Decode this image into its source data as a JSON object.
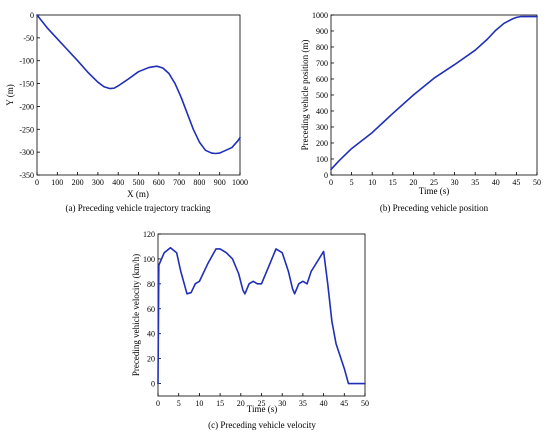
{
  "figure": {
    "colors": {
      "line": "#1f2fb8",
      "axes": "#000000",
      "background": "#ffffff"
    }
  },
  "chart_data": [
    {
      "id": "a",
      "type": "line",
      "caption": "(a) Preceding vehicle trajectory tracking",
      "xlabel": "X (m)",
      "ylabel": "Y (m)",
      "xlim": [
        0,
        1000
      ],
      "ylim": [
        -350,
        0
      ],
      "xticks": [
        0,
        100,
        200,
        300,
        400,
        500,
        600,
        700,
        800,
        900,
        1000
      ],
      "yticks": [
        0,
        -50,
        -100,
        -150,
        -200,
        -250,
        -300,
        -350
      ],
      "grid": false,
      "series": [
        {
          "x": [
            0,
            50,
            100,
            150,
            200,
            250,
            300,
            330,
            360,
            380,
            400,
            450,
            500,
            550,
            590,
            620,
            650,
            680,
            710,
            740,
            770,
            800,
            830,
            860,
            880,
            900,
            930,
            960,
            990,
            1000
          ],
          "y": [
            0,
            -28,
            -52,
            -76,
            -100,
            -125,
            -147,
            -157,
            -161,
            -160,
            -155,
            -140,
            -124,
            -115,
            -112,
            -116,
            -128,
            -150,
            -180,
            -215,
            -250,
            -278,
            -296,
            -302,
            -303,
            -302,
            -296,
            -290,
            -275,
            -268
          ]
        }
      ]
    },
    {
      "id": "b",
      "type": "line",
      "caption": "(b) Preceding vehicle position",
      "xlabel": "Time (s)",
      "ylabel": "Preceding vehicle position (m)",
      "xlim": [
        0,
        50
      ],
      "ylim": [
        0,
        1000
      ],
      "xticks": [
        0,
        5,
        10,
        15,
        20,
        25,
        30,
        35,
        40,
        45,
        50
      ],
      "yticks": [
        0,
        100,
        200,
        300,
        400,
        500,
        600,
        700,
        800,
        900,
        1000
      ],
      "grid": false,
      "series": [
        {
          "x": [
            0,
            2,
            5,
            10,
            15,
            20,
            25,
            30,
            35,
            38,
            40,
            42,
            44,
            45,
            46,
            47,
            50
          ],
          "y": [
            35,
            90,
            165,
            265,
            385,
            500,
            605,
            690,
            780,
            850,
            905,
            948,
            975,
            985,
            990,
            990,
            990
          ]
        }
      ]
    },
    {
      "id": "c",
      "type": "line",
      "caption": "(c) Preceding vehicle velocity",
      "xlabel": "Time (s)",
      "ylabel": "Preceding vehicle velocity (km/h)",
      "xlim": [
        0,
        50
      ],
      "ylim": [
        -10,
        120
      ],
      "xticks": [
        0,
        5,
        10,
        15,
        20,
        25,
        30,
        35,
        40,
        45,
        50
      ],
      "yticks": [
        0,
        20,
        40,
        60,
        80,
        100,
        120
      ],
      "grid": false,
      "series": [
        {
          "x": [
            0,
            0.2,
            1.5,
            3,
            4.5,
            5.5,
            6.5,
            7,
            8,
            9,
            10,
            12,
            14,
            15,
            16.5,
            18,
            19.5,
            20.5,
            21,
            22,
            23,
            24,
            25,
            27,
            28.5,
            30,
            31.5,
            32.5,
            33,
            34,
            35,
            36,
            37,
            38.5,
            40,
            41,
            42,
            43,
            45,
            46,
            47,
            50
          ],
          "y": [
            0,
            95,
            105,
            109,
            105,
            90,
            78,
            72,
            73,
            80,
            82,
            96,
            108,
            108,
            105,
            100,
            88,
            75,
            72,
            80,
            82,
            80,
            80,
            96,
            108,
            105,
            90,
            76,
            72,
            80,
            82,
            80,
            90,
            98,
            106,
            80,
            50,
            32,
            12,
            0,
            0,
            0
          ]
        }
      ]
    }
  ]
}
